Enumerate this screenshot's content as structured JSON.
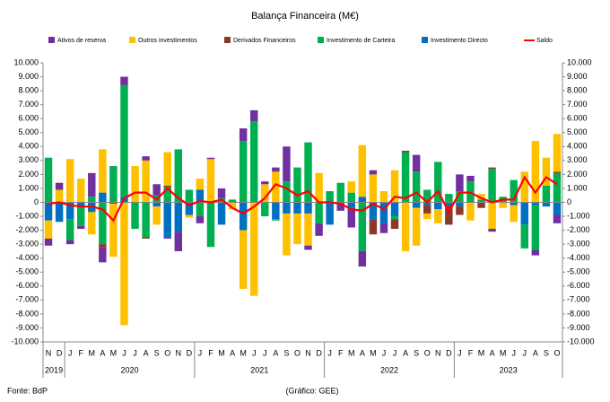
{
  "chart_data": {
    "type": "bar",
    "title": "Balança Financeira (M€)",
    "source": "Fonte: BdP",
    "note": "(Gráfico: GEE)",
    "groups": [
      {
        "label": "2019",
        "categories": [
          "N",
          "D"
        ]
      },
      {
        "label": "2020",
        "categories": [
          "J",
          "F",
          "M",
          "A",
          "M",
          "J",
          "J",
          "A",
          "S",
          "O",
          "N",
          "D"
        ]
      },
      {
        "label": "2021",
        "categories": [
          "J",
          "F",
          "M",
          "A",
          "M",
          "J",
          "J",
          "A",
          "S",
          "O",
          "N",
          "D"
        ]
      },
      {
        "label": "2022",
        "categories": [
          "J",
          "F",
          "M",
          "A",
          "M",
          "J",
          "J",
          "A",
          "S",
          "O",
          "N",
          "D"
        ]
      },
      {
        "label": "2023",
        "categories": [
          "J",
          "F",
          "M",
          "A",
          "M",
          "J",
          "J",
          "A",
          "S",
          "O"
        ]
      }
    ],
    "series": [
      {
        "name": "Ativos de reserva",
        "color": "#7030a0",
        "values": [
          -500,
          500,
          -300,
          -200,
          1700,
          -1100,
          0,
          600,
          0,
          300,
          800,
          -100,
          -1400,
          0,
          -500,
          100,
          700,
          0,
          900,
          800,
          200,
          300,
          2500,
          0,
          -300,
          -900,
          0,
          -600,
          -1400,
          -1100,
          300,
          -700,
          0,
          0,
          1200,
          0,
          0,
          0,
          1200,
          400,
          0,
          -200,
          0,
          0,
          0,
          -400,
          0,
          -600
        ]
      },
      {
        "name": "Outros investimentos",
        "color": "#ffc000",
        "values": [
          -1300,
          900,
          3100,
          1700,
          -1600,
          3100,
          -3800,
          -8800,
          2600,
          3000,
          -1300,
          2400,
          0,
          -200,
          800,
          3100,
          0,
          -500,
          -4200,
          -6700,
          1300,
          2200,
          -3000,
          -2200,
          -2300,
          2100,
          0,
          0,
          800,
          3700,
          2000,
          800,
          2300,
          -3500,
          -2700,
          -400,
          -1000,
          0,
          0,
          -1300,
          400,
          -1900,
          -400,
          -1200,
          2200,
          4400,
          2000,
          2700
        ]
      },
      {
        "name": "Derivados Financeiros",
        "color": "#8b3a2a",
        "values": [
          0,
          0,
          0,
          0,
          0,
          -200,
          -100,
          0,
          0,
          -100,
          0,
          100,
          0,
          0,
          0,
          0,
          0,
          0,
          0,
          0,
          0,
          0,
          0,
          0,
          0,
          0,
          0,
          0,
          0,
          0,
          -1100,
          0,
          -700,
          100,
          0,
          -600,
          0,
          -1400,
          -600,
          0,
          -400,
          100,
          0,
          0,
          0,
          0,
          0,
          100
        ]
      },
      {
        "name": "Investimento de Carteira",
        "color": "#00b050",
        "values": [
          3200,
          0,
          -1500,
          -1400,
          400,
          -3000,
          2600,
          8000,
          -1900,
          -2500,
          500,
          1100,
          3800,
          900,
          -1000,
          -3200,
          300,
          200,
          4400,
          5800,
          -1000,
          -100,
          1500,
          2500,
          4300,
          -1500,
          800,
          1400,
          700,
          -3500,
          0,
          0,
          -200,
          3600,
          2200,
          900,
          2900,
          600,
          800,
          1500,
          200,
          2400,
          400,
          1600,
          -1700,
          -3200,
          1200,
          2100
        ]
      },
      {
        "name": "Investimento Directo",
        "color": "#0070c0",
        "values": [
          -1300,
          -1400,
          -1200,
          -300,
          -700,
          700,
          0,
          400,
          0,
          0,
          -300,
          -2500,
          -2100,
          -900,
          900,
          0,
          -1600,
          0,
          -2000,
          0,
          0,
          -1200,
          -800,
          -800,
          -800,
          0,
          -1600,
          0,
          -400,
          400,
          -1200,
          -1500,
          -1000,
          0,
          -400,
          -200,
          -500,
          -200,
          -300,
          0,
          0,
          0,
          0,
          -200,
          -1600,
          -200,
          -300,
          -900
        ]
      },
      {
        "name": "Saldo",
        "type": "line",
        "color": "#ff0000",
        "values": [
          -100,
          0,
          -200,
          -300,
          -300,
          -500,
          -1300,
          300,
          700,
          700,
          200,
          1000,
          300,
          -200,
          100,
          0,
          200,
          -400,
          -800,
          -300,
          300,
          1300,
          1000,
          500,
          800,
          0,
          0,
          -100,
          -500,
          -600,
          -100,
          -500,
          400,
          300,
          700,
          0,
          800,
          -700,
          700,
          700,
          300,
          0,
          200,
          200,
          1800,
          700,
          1800,
          1300
        ]
      }
    ],
    "ylim": [
      -10000,
      10000
    ],
    "yticks": [
      {
        "value": -10000,
        "label": "-10.000"
      },
      {
        "value": -9000,
        "label": "-9.000"
      },
      {
        "value": -8000,
        "label": "-8.000"
      },
      {
        "value": -7000,
        "label": "-7.000"
      },
      {
        "value": -6000,
        "label": "-6.000"
      },
      {
        "value": -5000,
        "label": "-5.000"
      },
      {
        "value": -4000,
        "label": "-4.000"
      },
      {
        "value": -3000,
        "label": "-3.000"
      },
      {
        "value": -2000,
        "label": "-2.000"
      },
      {
        "value": -1000,
        "label": "-1.000"
      },
      0,
      {
        "value": 1000,
        "label": "1.000"
      },
      {
        "value": 2000,
        "label": "2.000"
      },
      {
        "value": 3000,
        "label": "3.000"
      },
      {
        "value": 4000,
        "label": "4.000"
      },
      {
        "value": 5000,
        "label": "5.000"
      },
      {
        "value": 6000,
        "label": "6.000"
      },
      {
        "value": 7000,
        "label": "7.000"
      },
      {
        "value": 8000,
        "label": "8.000"
      },
      {
        "value": 9000,
        "label": "9.000"
      },
      {
        "value": 10000,
        "label": "10.000"
      }
    ],
    "y2lim": [
      -10000,
      10000
    ],
    "y2ticks": [
      {
        "value": -10000,
        "label": "-10.000"
      },
      {
        "value": -9000,
        "label": "-9.000"
      },
      {
        "value": -8000,
        "label": "-8.000"
      },
      {
        "value": -7000,
        "label": "-7.000"
      },
      {
        "value": -6000,
        "label": "-6.000"
      },
      {
        "value": -5000,
        "label": "-5.000"
      },
      {
        "value": -4000,
        "label": "-4.000"
      },
      {
        "value": -3000,
        "label": "-3.000"
      },
      {
        "value": -2000,
        "label": "-2.000"
      },
      {
        "value": -1000,
        "label": "-1.000"
      },
      0,
      {
        "value": 1000,
        "label": "1.000"
      },
      {
        "value": 2000,
        "label": "2.000"
      },
      {
        "value": 3000,
        "label": "3.000"
      },
      {
        "value": 4000,
        "label": "4.000"
      },
      {
        "value": 5000,
        "label": "5.000"
      },
      {
        "value": 6000,
        "label": "6.000"
      },
      {
        "value": 7000,
        "label": "7.000"
      },
      {
        "value": 8000,
        "label": "8.000"
      },
      {
        "value": 9000,
        "label": "9.000"
      },
      {
        "value": 10000,
        "label": "10.000"
      }
    ],
    "legend": "top",
    "grid": false
  }
}
